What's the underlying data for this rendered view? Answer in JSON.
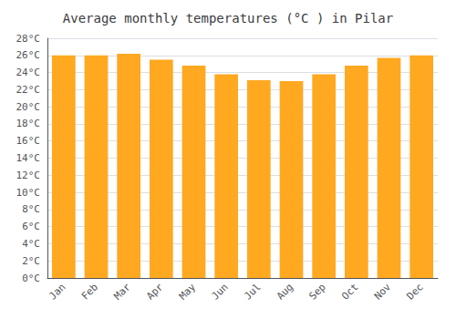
{
  "chart_data": {
    "type": "bar",
    "title": "Average monthly temperatures (°C ) in Pilar",
    "categories": [
      "Jan",
      "Feb",
      "Mar",
      "Apr",
      "May",
      "Jun",
      "Jul",
      "Aug",
      "Sep",
      "Oct",
      "Nov",
      "Dec"
    ],
    "values": [
      26.0,
      26.0,
      26.2,
      25.5,
      24.8,
      23.8,
      23.1,
      23.0,
      23.8,
      24.8,
      25.7,
      26.0
    ],
    "color": "#FFA820",
    "ylim": [
      0,
      28
    ],
    "yticks": [
      {
        "value": 0,
        "label": "0°C"
      },
      {
        "value": 2,
        "label": "2°C"
      },
      {
        "value": 4,
        "label": "4°C"
      },
      {
        "value": 6,
        "label": "6°C"
      },
      {
        "value": 8,
        "label": "8°C"
      },
      {
        "value": 10,
        "label": "10°C"
      },
      {
        "value": 12,
        "label": "12°C"
      },
      {
        "value": 14,
        "label": "14°C"
      },
      {
        "value": 16,
        "label": "16°C"
      },
      {
        "value": 18,
        "label": "18°C"
      },
      {
        "value": 20,
        "label": "20°C"
      },
      {
        "value": 22,
        "label": "22°C"
      },
      {
        "value": 24,
        "label": "24°C"
      },
      {
        "value": 26,
        "label": "26°C"
      },
      {
        "value": 28,
        "label": "28°C"
      }
    ],
    "grid": true
  }
}
